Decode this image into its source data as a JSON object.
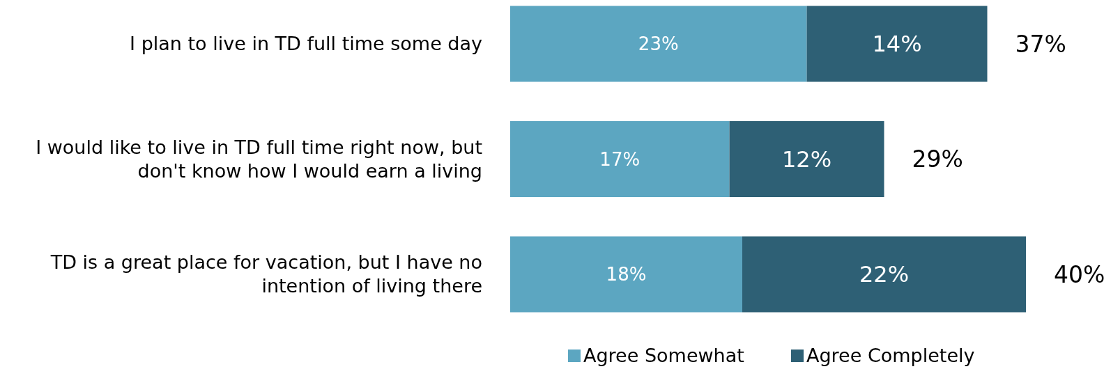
{
  "chart_data": {
    "type": "bar",
    "orientation": "horizontal",
    "stacked": true,
    "categories": [
      "I plan to live in TD full time some day",
      "I would like to live in TD full time right now, but don't know how I would earn a living",
      "TD is a great place for vacation, but I have no intention of living there"
    ],
    "series": [
      {
        "name": "Agree Somewhat",
        "color": "#5ca6c1",
        "values": [
          23,
          17,
          18
        ],
        "value_labels": [
          "23%",
          "17%",
          "18%"
        ]
      },
      {
        "name": "Agree Completely",
        "color": "#2e6075",
        "values": [
          14,
          12,
          22
        ],
        "value_labels": [
          "14%",
          "12%",
          "22%"
        ]
      }
    ],
    "totals": [
      "37%",
      "29%",
      "40%"
    ],
    "legend": "bottom"
  }
}
